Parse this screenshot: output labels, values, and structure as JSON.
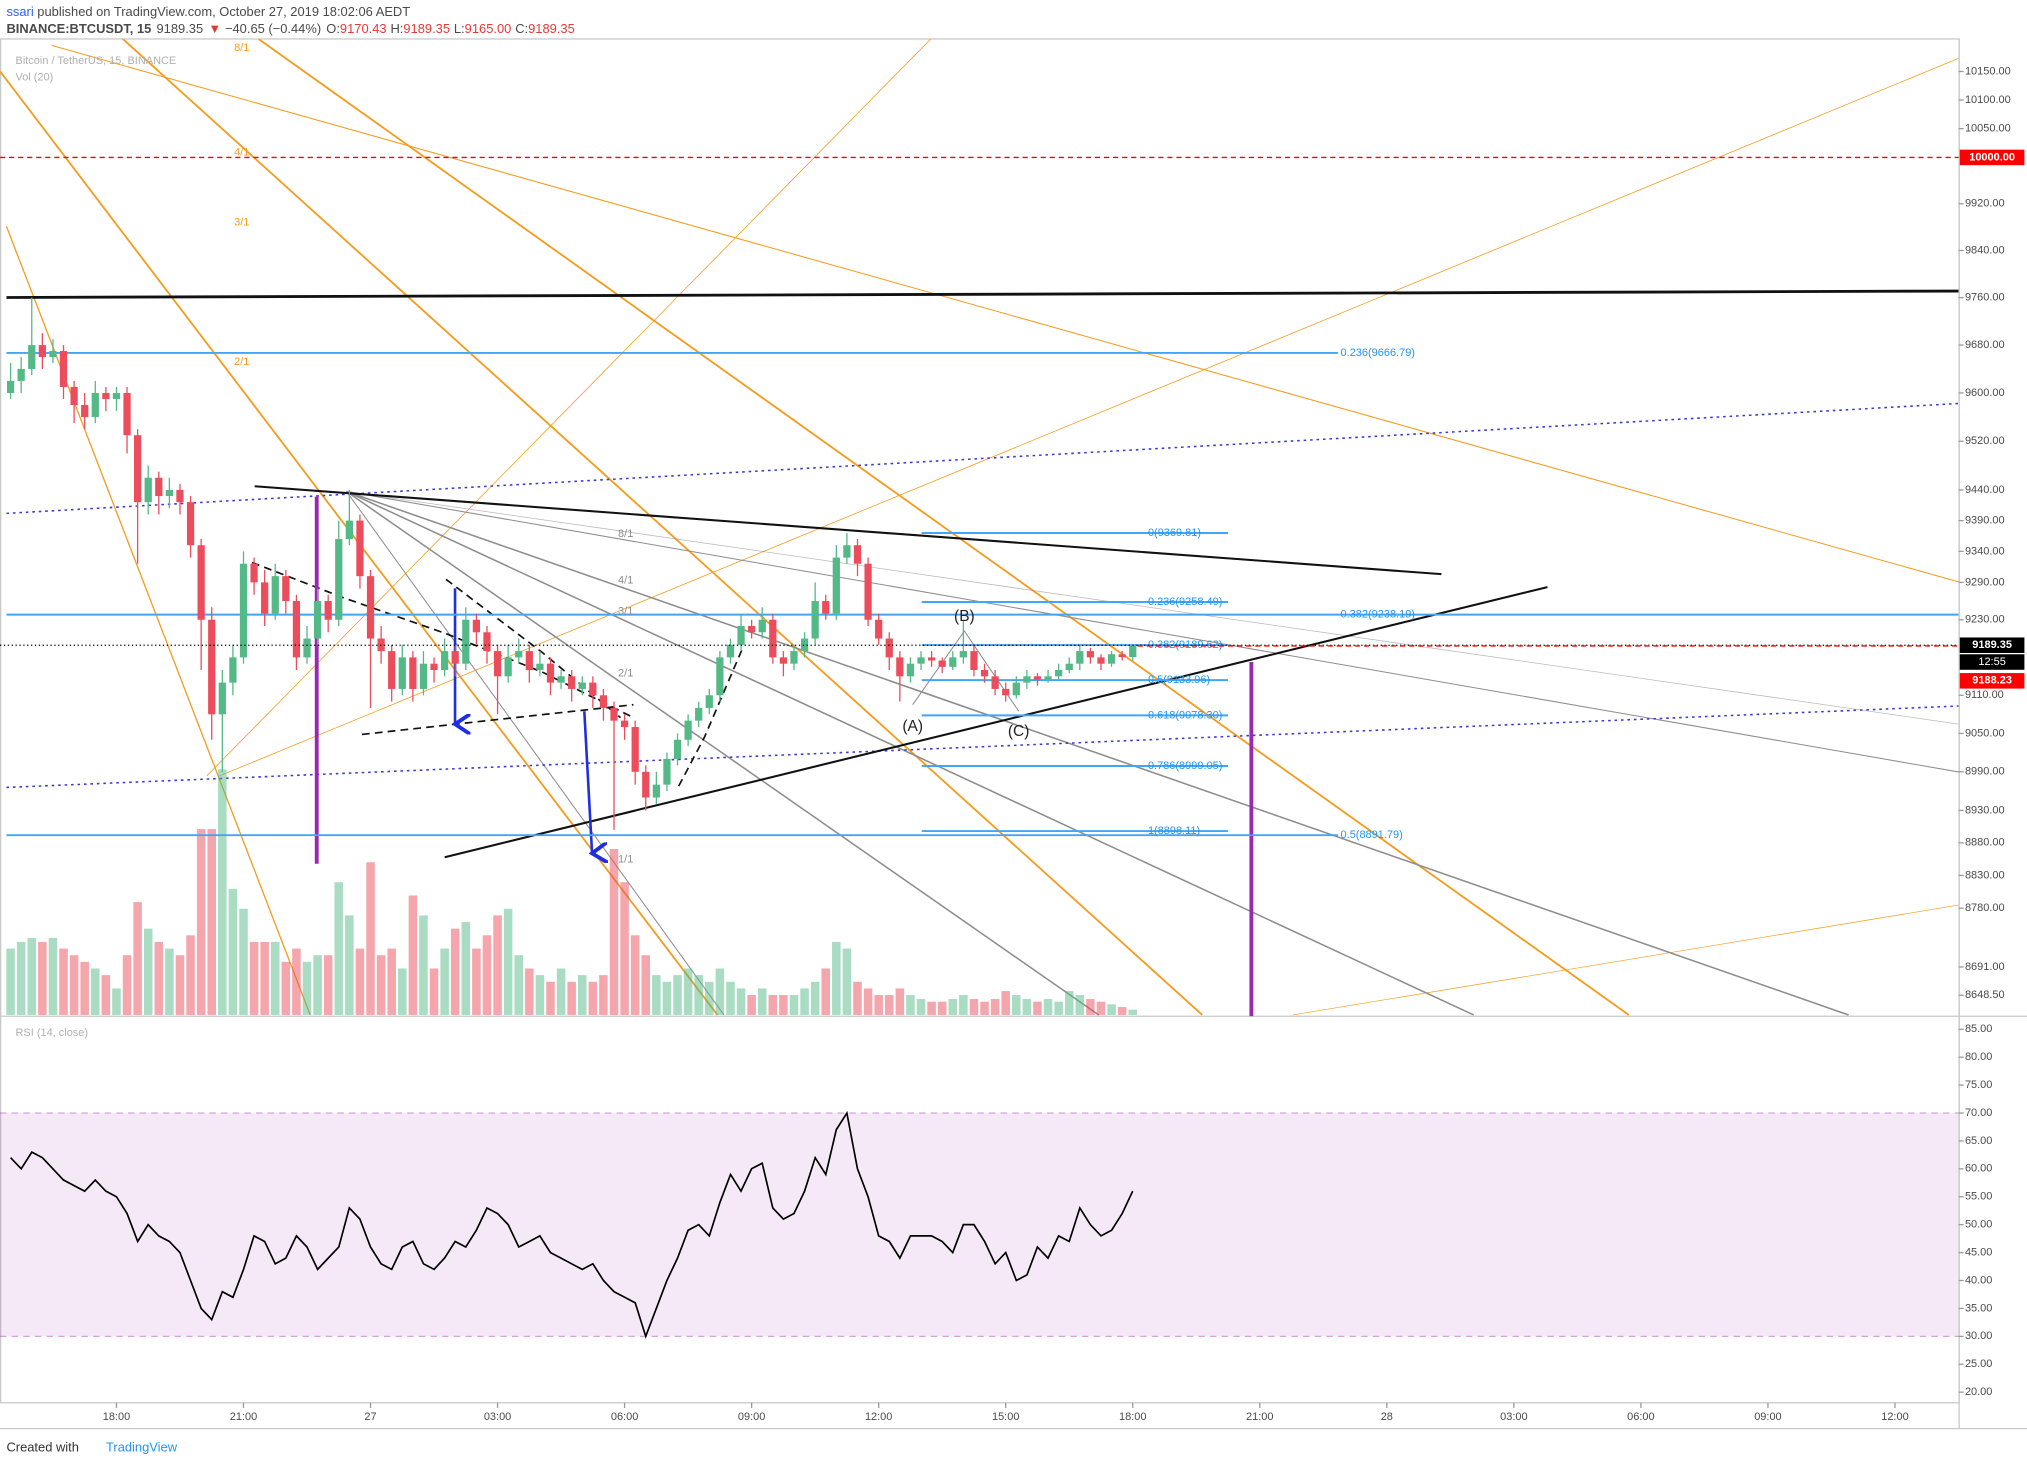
{
  "header": {
    "author": "ssari",
    "published": " published on TradingView.com, October 27, 2019 18:02:06 AEDT",
    "symbol": "BINANCE:BTCUSDT, 15",
    "last": "9189.35",
    "arrow": "▼",
    "change": "−40.65 (−0.44%)",
    "ohlc": [
      [
        "O:",
        "9170.43"
      ],
      [
        "H:",
        "9189.35"
      ],
      [
        "L:",
        "9165.00"
      ],
      [
        "C:",
        "9189.35"
      ]
    ]
  },
  "footer": {
    "created": "Created with",
    "brand": "TradingView"
  },
  "chart_data": {
    "type": "candlestick",
    "legend": [
      "Bitcoin / TetherUS, 15, BINANCE",
      "Vol (20)"
    ],
    "up_color": "#53b987",
    "down_color": "#eb4d5c",
    "log_scale": true,
    "xlim": [
      -1,
      184
    ],
    "xticks": [
      {
        "value": 10,
        "label": "18:00"
      },
      {
        "value": 22,
        "label": "21:00"
      },
      {
        "value": 34,
        "label": "27"
      },
      {
        "value": 46,
        "label": "03:00"
      },
      {
        "value": 58,
        "label": "06:00"
      },
      {
        "value": 70,
        "label": "09:00"
      },
      {
        "value": 82,
        "label": "12:00"
      },
      {
        "value": 94,
        "label": "15:00"
      },
      {
        "value": 106,
        "label": "18:00"
      },
      {
        "value": 118,
        "label": "21:00"
      },
      {
        "value": 130,
        "label": "28"
      },
      {
        "value": 142,
        "label": "03:00"
      },
      {
        "value": 154,
        "label": "06:00"
      },
      {
        "value": 166,
        "label": "09:00"
      },
      {
        "value": 178,
        "label": "12:00"
      }
    ],
    "ylim": [
      8619,
      10196
    ],
    "yticks": [
      {
        "value": 10150,
        "label": "10150.00"
      },
      {
        "value": 10100,
        "label": "10100.00"
      },
      {
        "value": 10050,
        "label": "10050.00"
      },
      {
        "value": 9920,
        "label": "9920.00"
      },
      {
        "value": 9840,
        "label": "9840.00"
      },
      {
        "value": 9760,
        "label": "9760.00"
      },
      {
        "value": 9680,
        "label": "9680.00"
      },
      {
        "value": 9600,
        "label": "9600.00"
      },
      {
        "value": 9520,
        "label": "9520.00"
      },
      {
        "value": 9440,
        "label": "9440.00"
      },
      {
        "value": 9390,
        "label": "9390.00"
      },
      {
        "value": 9340,
        "label": "9340.00"
      },
      {
        "value": 9290,
        "label": "9290.00"
      },
      {
        "value": 9230,
        "label": "9230.00"
      },
      {
        "value": 9110,
        "label": "9110.00"
      },
      {
        "value": 9050,
        "label": "9050.00"
      },
      {
        "value": 8990,
        "label": "8990.00"
      },
      {
        "value": 8930,
        "label": "8930.00"
      },
      {
        "value": 8880,
        "label": "8880.00"
      },
      {
        "value": 8830,
        "label": "8830.00"
      },
      {
        "value": 8780,
        "label": "8780.00"
      },
      {
        "value": 8691,
        "label": "8691.00"
      },
      {
        "value": 8648.5,
        "label": "8648.50"
      }
    ],
    "candles": [
      [
        9600,
        9650,
        9590,
        9620
      ],
      [
        9620,
        9660,
        9600,
        9640
      ],
      [
        9640,
        9760,
        9630,
        9680
      ],
      [
        9680,
        9700,
        9640,
        9660
      ],
      [
        9660,
        9690,
        9650,
        9670
      ],
      [
        9670,
        9680,
        9590,
        9610
      ],
      [
        9610,
        9620,
        9550,
        9580
      ],
      [
        9580,
        9600,
        9540,
        9560
      ],
      [
        9560,
        9620,
        9550,
        9600
      ],
      [
        9600,
        9610,
        9570,
        9590
      ],
      [
        9590,
        9610,
        9570,
        9600
      ],
      [
        9600,
        9610,
        9500,
        9530
      ],
      [
        9530,
        9540,
        9320,
        9420
      ],
      [
        9420,
        9480,
        9400,
        9460
      ],
      [
        9460,
        9470,
        9400,
        9430
      ],
      [
        9430,
        9460,
        9410,
        9440
      ],
      [
        9440,
        9450,
        9400,
        9420
      ],
      [
        9420,
        9430,
        9330,
        9350
      ],
      [
        9350,
        9360,
        9150,
        9230
      ],
      [
        9230,
        9250,
        9040,
        9080
      ],
      [
        9080,
        9150,
        8990,
        9130
      ],
      [
        9130,
        9190,
        9110,
        9170
      ],
      [
        9170,
        9340,
        9160,
        9320
      ],
      [
        9320,
        9330,
        9270,
        9290
      ],
      [
        9290,
        9310,
        9220,
        9240
      ],
      [
        9240,
        9320,
        9230,
        9300
      ],
      [
        9300,
        9310,
        9240,
        9260
      ],
      [
        9260,
        9270,
        9150,
        9170
      ],
      [
        9170,
        9220,
        9160,
        9200
      ],
      [
        9200,
        9280,
        9190,
        9260
      ],
      [
        9260,
        9270,
        9210,
        9230
      ],
      [
        9230,
        9390,
        9220,
        9360
      ],
      [
        9360,
        9440,
        9350,
        9390
      ],
      [
        9390,
        9400,
        9280,
        9300
      ],
      [
        9300,
        9310,
        9090,
        9200
      ],
      [
        9200,
        9220,
        9160,
        9180
      ],
      [
        9180,
        9190,
        9100,
        9120
      ],
      [
        9120,
        9190,
        9110,
        9170
      ],
      [
        9170,
        9180,
        9100,
        9120
      ],
      [
        9120,
        9180,
        9110,
        9160
      ],
      [
        9160,
        9170,
        9130,
        9150
      ],
      [
        9150,
        9200,
        9140,
        9180
      ],
      [
        9180,
        9190,
        9140,
        9160
      ],
      [
        9160,
        9250,
        9150,
        9230
      ],
      [
        9230,
        9240,
        9190,
        9210
      ],
      [
        9210,
        9220,
        9160,
        9180
      ],
      [
        9180,
        9190,
        9080,
        9140
      ],
      [
        9140,
        9190,
        9130,
        9170
      ],
      [
        9170,
        9200,
        9160,
        9180
      ],
      [
        9180,
        9190,
        9130,
        9150
      ],
      [
        9150,
        9180,
        9140,
        9160
      ],
      [
        9160,
        9170,
        9110,
        9130
      ],
      [
        9130,
        9150,
        9120,
        9140
      ],
      [
        9140,
        9150,
        9100,
        9120
      ],
      [
        9120,
        9140,
        9110,
        9130
      ],
      [
        9130,
        9140,
        9090,
        9110
      ],
      [
        9110,
        9120,
        9070,
        9090
      ],
      [
        9090,
        9100,
        8900,
        9070
      ],
      [
        9070,
        9080,
        9040,
        9060
      ],
      [
        9060,
        9070,
        8970,
        8990
      ],
      [
        8990,
        9000,
        8930,
        8950
      ],
      [
        8950,
        8990,
        8940,
        8970
      ],
      [
        8970,
        9020,
        8960,
        9010
      ],
      [
        9010,
        9050,
        9000,
        9040
      ],
      [
        9040,
        9080,
        9030,
        9070
      ],
      [
        9070,
        9100,
        9060,
        9090
      ],
      [
        9090,
        9120,
        9080,
        9110
      ],
      [
        9110,
        9180,
        9100,
        9170
      ],
      [
        9170,
        9200,
        9160,
        9190
      ],
      [
        9190,
        9240,
        9180,
        9220
      ],
      [
        9220,
        9230,
        9200,
        9210
      ],
      [
        9210,
        9250,
        9200,
        9230
      ],
      [
        9230,
        9240,
        9160,
        9170
      ],
      [
        9170,
        9180,
        9140,
        9160
      ],
      [
        9160,
        9190,
        9150,
        9180
      ],
      [
        9180,
        9210,
        9170,
        9200
      ],
      [
        9200,
        9290,
        9190,
        9260
      ],
      [
        9260,
        9270,
        9230,
        9240
      ],
      [
        9240,
        9350,
        9230,
        9330
      ],
      [
        9330,
        9370,
        9320,
        9350
      ],
      [
        9350,
        9360,
        9300,
        9320
      ],
      [
        9320,
        9330,
        9220,
        9230
      ],
      [
        9230,
        9240,
        9190,
        9200
      ],
      [
        9200,
        9210,
        9150,
        9170
      ],
      [
        9170,
        9180,
        9100,
        9140
      ],
      [
        9140,
        9170,
        9130,
        9160
      ],
      [
        9160,
        9180,
        9150,
        9170
      ],
      [
        9170,
        9180,
        9155,
        9165
      ],
      [
        9165,
        9170,
        9145,
        9155
      ],
      [
        9155,
        9180,
        9150,
        9170
      ],
      [
        9170,
        9230,
        9160,
        9180
      ],
      [
        9180,
        9190,
        9140,
        9150
      ],
      [
        9150,
        9160,
        9130,
        9140
      ],
      [
        9140,
        9150,
        9110,
        9120
      ],
      [
        9120,
        9130,
        9100,
        9110
      ],
      [
        9110,
        9140,
        9105,
        9130
      ],
      [
        9130,
        9150,
        9120,
        9140
      ],
      [
        9140,
        9145,
        9125,
        9135
      ],
      [
        9135,
        9150,
        9130,
        9140
      ],
      [
        9140,
        9160,
        9135,
        9150
      ],
      [
        9150,
        9170,
        9145,
        9160
      ],
      [
        9160,
        9190,
        9150,
        9180
      ],
      [
        9180,
        9185,
        9160,
        9170
      ],
      [
        9170,
        9175,
        9150,
        9160
      ],
      [
        9160,
        9180,
        9155,
        9175
      ],
      [
        9175,
        9180,
        9165,
        9170.43
      ],
      [
        9170.43,
        9189.35,
        9165,
        9189.35
      ]
    ],
    "volume": [
      500,
      550,
      580,
      550,
      580,
      500,
      450,
      400,
      350,
      300,
      200,
      450,
      850,
      650,
      550,
      500,
      450,
      600,
      1400,
      1400,
      1850,
      950,
      800,
      550,
      550,
      550,
      400,
      500,
      400,
      450,
      450,
      1000,
      750,
      500,
      1150,
      450,
      500,
      350,
      900,
      750,
      350,
      500,
      650,
      700,
      500,
      600,
      750,
      800,
      450,
      350,
      300,
      250,
      350,
      250,
      300,
      250,
      300,
      1250,
      1000,
      600,
      450,
      300,
      250,
      300,
      350,
      300,
      250,
      350,
      250,
      200,
      150,
      200,
      150,
      150,
      150,
      200,
      250,
      350,
      550,
      500,
      250,
      200,
      150,
      150,
      200,
      150,
      120,
      100,
      100,
      120,
      150,
      120,
      100,
      120,
      180,
      150,
      120,
      100,
      120,
      100,
      180,
      150,
      120,
      100,
      80,
      60,
      40
    ],
    "fib_levels": [
      {
        "label": "0.236(9666.79)",
        "value": 9666.79
      },
      {
        "label": "0.382(9238.19)",
        "value": 9238.19
      },
      {
        "label": "0.5(8891.79)",
        "value": 8891.79
      },
      {
        "label": "0(9369.81)",
        "value": 9369.81
      },
      {
        "label": "0.236(9258.49)",
        "value": 9258.49
      },
      {
        "label": "0.382(9189.62)",
        "value": 9189.62
      },
      {
        "label": "0.5(9133.96)",
        "value": 9133.96
      },
      {
        "label": "0.618(9078.30)",
        "value": 9078.3
      },
      {
        "label": "0.786(8999.05)",
        "value": 8999.05
      },
      {
        "label": "1(8898.11)",
        "value": 8898.11
      }
    ],
    "price_labels": [
      {
        "label": "10000.00",
        "value": 10000,
        "color": "#ff0000"
      },
      {
        "label": "9189.35",
        "value": 9189.35,
        "color": "#000000"
      },
      {
        "label": "9188.23",
        "value": 9188.23,
        "color": "#ff0000"
      }
    ],
    "countdown": "12:55",
    "wave_labels": [
      "(A)",
      "(B)",
      "(C)"
    ],
    "gann_labels": [
      "8/1",
      "4/1",
      "3/1",
      "2/1",
      "8/1",
      "4/1",
      "3/1",
      "2/1",
      "1/1"
    ],
    "rsi": {
      "title": "RSI (14, close)",
      "color": "#000000",
      "band": [
        30,
        70
      ],
      "band_color": "#9c27b0",
      "ylim": [
        18.1,
        87.1
      ],
      "yticks": [
        {
          "value": 85,
          "label": "85.00"
        },
        {
          "value": 80,
          "label": "80.00"
        },
        {
          "value": 75,
          "label": "75.00"
        },
        {
          "value": 70,
          "label": "70.00"
        },
        {
          "value": 65,
          "label": "65.00"
        },
        {
          "value": 60,
          "label": "60.00"
        },
        {
          "value": 55,
          "label": "55.00"
        },
        {
          "value": 50,
          "label": "50.00"
        },
        {
          "value": 45,
          "label": "45.00"
        },
        {
          "value": 40,
          "label": "40.00"
        },
        {
          "value": 35,
          "label": "35.00"
        },
        {
          "value": 30,
          "label": "30.00"
        },
        {
          "value": 25,
          "label": "25.00"
        },
        {
          "value": 20,
          "label": "20.00"
        }
      ],
      "values": [
        62,
        60,
        63,
        62,
        60,
        58,
        57,
        56,
        58,
        56,
        55,
        52,
        47,
        50,
        48,
        47,
        45,
        40,
        35,
        33,
        38,
        37,
        42,
        48,
        47,
        43,
        44,
        48,
        46,
        42,
        44,
        46,
        53,
        51,
        46,
        43,
        42,
        46,
        47,
        43,
        42,
        44,
        47,
        46,
        49,
        53,
        52,
        50,
        46,
        47,
        48,
        45,
        44,
        43,
        42,
        43,
        40,
        38,
        37,
        36,
        30,
        35,
        40,
        44,
        49,
        50,
        48,
        54,
        59,
        56,
        60,
        61,
        53,
        51,
        52,
        56,
        62,
        59,
        67,
        70,
        60,
        55,
        48,
        47,
        44,
        48,
        48,
        48,
        47,
        45,
        50,
        50,
        47,
        43,
        45,
        40,
        41,
        46,
        44,
        48,
        47,
        53,
        50,
        48,
        49,
        52,
        56
      ]
    }
  }
}
